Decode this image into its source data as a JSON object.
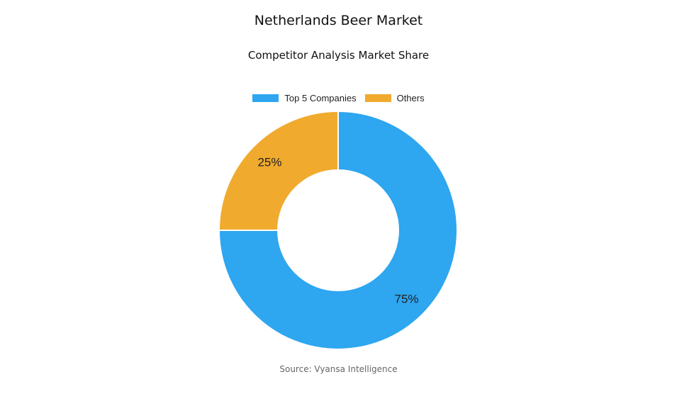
{
  "chart_data": {
    "type": "pie",
    "title": "Netherlands Beer Market",
    "subtitle": "Competitor Analysis Market Share",
    "categories": [
      "Top 5 Companies",
      "Others"
    ],
    "values": [
      75,
      25
    ],
    "data_labels": [
      "75%",
      "25%"
    ],
    "colors": [
      "#2ea6f0",
      "#f0aa2e"
    ],
    "donut": true,
    "legend_position": "top"
  },
  "source": "Source: Vyansa Intelligence"
}
